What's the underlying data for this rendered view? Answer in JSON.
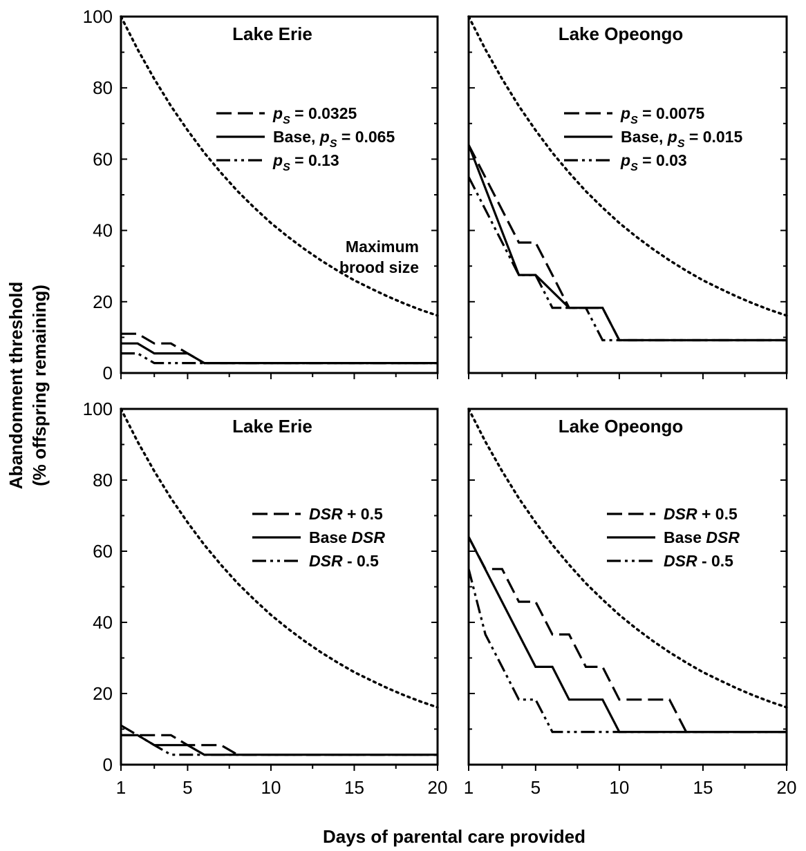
{
  "figure": {
    "xlabel": "Days of parental care provided",
    "ylabel_line1": "Abandonment threshold",
    "ylabel_line2": "(% offspring remaining)"
  },
  "chart_data": [
    {
      "type": "line",
      "title": "Lake Erie",
      "xlim": [
        1,
        20
      ],
      "ylim": [
        0,
        100
      ],
      "xticks": [
        "1",
        "5",
        "10",
        "15",
        "20"
      ],
      "yticks": [
        "0",
        "20",
        "40",
        "60",
        "80",
        "100"
      ],
      "annotation": [
        "Maximum",
        "brood size"
      ],
      "legend_placement": "upper right",
      "series": [
        {
          "name": "Maximum brood size",
          "style": "dotted",
          "x": [
            1,
            2,
            3,
            4,
            5,
            6,
            7,
            8,
            9,
            10,
            11,
            12,
            13,
            14,
            15,
            16,
            17,
            18,
            19,
            20
          ],
          "y": [
            100,
            90.8,
            82.5,
            74.9,
            68.1,
            61.8,
            56.2,
            51.0,
            46.4,
            42.1,
            38.3,
            34.8,
            31.6,
            28.7,
            26.0,
            23.7,
            21.5,
            19.5,
            17.7,
            16.1
          ]
        },
        {
          "name": "p_s = 0.0325",
          "legend": {
            "pre": "",
            "var": "p",
            "sub": "S",
            "post": " = 0.0325"
          },
          "style": "dashed",
          "x": [
            1,
            2,
            2,
            3,
            3,
            4,
            4,
            5,
            5,
            6,
            6,
            20
          ],
          "y": [
            11,
            11,
            11,
            8.3,
            8.3,
            8.3,
            8.3,
            5.5,
            5.5,
            2.8,
            2.8,
            2.8
          ]
        },
        {
          "name": "Base, p_s = 0.065",
          "legend": {
            "pre": "Base, ",
            "var": "p",
            "sub": "S",
            "post": " = 0.065"
          },
          "style": "solid",
          "x": [
            1,
            2,
            3,
            3,
            5,
            6,
            20
          ],
          "y": [
            8.3,
            8.3,
            5.5,
            5.5,
            5.5,
            2.8,
            2.8
          ]
        },
        {
          "name": "p_s = 0.13",
          "legend": {
            "pre": "",
            "var": "p",
            "sub": "S",
            "post": " = 0.13"
          },
          "style": "dash-dot-dot",
          "x": [
            1,
            2,
            3,
            4,
            20
          ],
          "y": [
            5.5,
            5.5,
            2.8,
            2.8,
            2.8
          ]
        }
      ]
    },
    {
      "type": "line",
      "title": "Lake Opeongo",
      "xlim": [
        1,
        20
      ],
      "ylim": [
        0,
        100
      ],
      "xticks": [
        "1",
        "5",
        "10",
        "15",
        "20"
      ],
      "yticks": [
        "0",
        "20",
        "40",
        "60",
        "80",
        "100"
      ],
      "legend_placement": "upper right",
      "series": [
        {
          "name": "Maximum brood size",
          "style": "dotted",
          "x": [
            1,
            2,
            3,
            4,
            5,
            6,
            7,
            8,
            9,
            10,
            11,
            12,
            13,
            14,
            15,
            16,
            17,
            18,
            19,
            20
          ],
          "y": [
            100,
            90.8,
            82.5,
            74.9,
            68.1,
            61.8,
            56.2,
            51.0,
            46.4,
            42.1,
            38.3,
            34.8,
            31.6,
            28.7,
            26.0,
            23.7,
            21.5,
            19.5,
            17.7,
            16.1
          ]
        },
        {
          "name": "p_s = 0.0075",
          "legend": {
            "pre": "",
            "var": "p",
            "sub": "S",
            "post": " = 0.0075"
          },
          "style": "dashed",
          "x": [
            1,
            4,
            5,
            6,
            7,
            9,
            10,
            20
          ],
          "y": [
            64,
            36.6,
            36.6,
            27.5,
            18.3,
            18.3,
            9.2,
            9.2
          ]
        },
        {
          "name": "Base, p_s = 0.015",
          "legend": {
            "pre": "Base, ",
            "var": "p",
            "sub": "S",
            "post": " = 0.015"
          },
          "style": "solid",
          "x": [
            1,
            4,
            5,
            7,
            9,
            10,
            20
          ],
          "y": [
            64,
            27.5,
            27.5,
            18.3,
            18.3,
            9.2,
            9.2
          ]
        },
        {
          "name": "p_s = 0.03",
          "legend": {
            "pre": "",
            "var": "p",
            "sub": "S",
            "post": " = 0.03"
          },
          "style": "dash-dot-dot",
          "x": [
            1,
            4,
            5,
            6,
            8,
            9,
            20
          ],
          "y": [
            55,
            27.5,
            27.5,
            18.3,
            18.3,
            9.2,
            9.2
          ]
        }
      ]
    },
    {
      "type": "line",
      "title": "Lake Erie",
      "xlim": [
        1,
        20
      ],
      "ylim": [
        0,
        100
      ],
      "xticks": [
        "1",
        "5",
        "10",
        "15",
        "20"
      ],
      "yticks": [
        "0",
        "20",
        "40",
        "60",
        "80",
        "100"
      ],
      "legend_placement": "upper right",
      "series": [
        {
          "name": "Maximum brood size",
          "style": "dotted",
          "x": [
            1,
            2,
            3,
            4,
            5,
            6,
            7,
            8,
            9,
            10,
            11,
            12,
            13,
            14,
            15,
            16,
            17,
            18,
            19,
            20
          ],
          "y": [
            100,
            90.8,
            82.5,
            74.9,
            68.1,
            61.8,
            56.2,
            51.0,
            46.4,
            42.1,
            38.3,
            34.8,
            31.6,
            28.7,
            26.0,
            23.7,
            21.5,
            19.5,
            17.7,
            16.1
          ]
        },
        {
          "name": "DSR + 0.5",
          "legend": {
            "pre": "",
            "var": "DSR",
            "sub": "",
            "post": " + 0.5"
          },
          "style": "dashed",
          "x": [
            1,
            2,
            4,
            5,
            7,
            8,
            20
          ],
          "y": [
            11,
            8.3,
            8.3,
            5.5,
            5.5,
            2.8,
            2.8
          ]
        },
        {
          "name": "Base DSR",
          "legend": {
            "pre": "Base ",
            "var": "DSR",
            "sub": "",
            "post": ""
          },
          "style": "solid",
          "x": [
            1,
            2,
            3,
            4,
            5,
            6,
            20
          ],
          "y": [
            8.3,
            8.3,
            5.5,
            5.5,
            5.5,
            2.8,
            2.8
          ]
        },
        {
          "name": "DSR - 0.5",
          "legend": {
            "pre": "",
            "var": "DSR",
            "sub": "",
            "post": " - 0.5"
          },
          "style": "dash-dot-dot",
          "x": [
            1,
            2,
            3,
            4,
            20
          ],
          "y": [
            8.3,
            8.3,
            5.5,
            2.8,
            2.8
          ]
        }
      ]
    },
    {
      "type": "line",
      "title": "Lake Opeongo",
      "xlim": [
        1,
        20
      ],
      "ylim": [
        0,
        100
      ],
      "xticks": [
        "1",
        "5",
        "10",
        "15",
        "20"
      ],
      "yticks": [
        "0",
        "20",
        "40",
        "60",
        "80",
        "100"
      ],
      "legend_placement": "upper right",
      "series": [
        {
          "name": "Maximum brood size",
          "style": "dotted",
          "x": [
            1,
            2,
            3,
            4,
            5,
            6,
            7,
            8,
            9,
            10,
            11,
            12,
            13,
            14,
            15,
            16,
            17,
            18,
            19,
            20
          ],
          "y": [
            100,
            90.8,
            82.5,
            74.9,
            68.1,
            61.8,
            56.2,
            51.0,
            46.4,
            42.1,
            38.3,
            34.8,
            31.6,
            28.7,
            26.0,
            23.7,
            21.5,
            19.5,
            17.7,
            16.1
          ]
        },
        {
          "name": "DSR + 0.5",
          "legend": {
            "pre": "",
            "var": "DSR",
            "sub": "",
            "post": " + 0.5"
          },
          "style": "dashed",
          "x": [
            1,
            2,
            3,
            4,
            5,
            6,
            7,
            8,
            9,
            10,
            12,
            13,
            14,
            20
          ],
          "y": [
            64,
            55,
            55,
            45.8,
            45.8,
            36.6,
            36.6,
            27.5,
            27.5,
            18.3,
            18.3,
            18.3,
            9.2,
            9.2
          ]
        },
        {
          "name": "Base DSR",
          "legend": {
            "pre": "Base ",
            "var": "DSR",
            "sub": "",
            "post": ""
          },
          "style": "solid",
          "x": [
            1,
            5,
            6,
            7,
            9,
            10,
            20
          ],
          "y": [
            64,
            27.5,
            27.5,
            18.3,
            18.3,
            9.2,
            9.2
          ]
        },
        {
          "name": "DSR - 0.5",
          "legend": {
            "pre": "",
            "var": "DSR",
            "sub": "",
            "post": " - 0.5"
          },
          "style": "dash-dot-dot",
          "x": [
            1,
            2,
            3,
            4,
            5,
            6,
            20
          ],
          "y": [
            55,
            36.6,
            27.5,
            18.3,
            18.3,
            9.2,
            9.2
          ]
        }
      ]
    }
  ]
}
